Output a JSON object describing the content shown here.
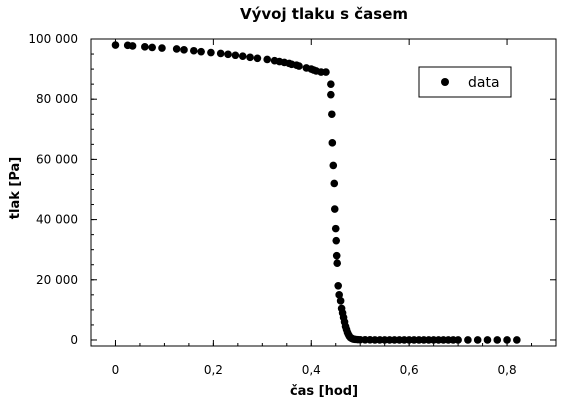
{
  "chart_data": {
    "type": "scatter",
    "title": "Vývoj tlaku s časem",
    "xlabel": "čas [hod]",
    "ylabel": "tlak [Pa]",
    "xlim": [
      -0.05,
      0.9
    ],
    "ylim": [
      -2000,
      100000
    ],
    "xticks": [
      0,
      0.2,
      0.4,
      0.6,
      0.8
    ],
    "xtick_labels": [
      "0",
      "0,2",
      "0,4",
      "0,6",
      "0,8"
    ],
    "yticks": [
      0,
      20000,
      40000,
      60000,
      80000,
      100000
    ],
    "ytick_labels": [
      "0",
      "20 000",
      "40 000",
      "60 000",
      "80 000",
      "100 000"
    ],
    "grid": false,
    "legend_position": "top-right",
    "marker_color": "#000000",
    "series": [
      {
        "name": "data",
        "x": [
          0.0,
          0.025,
          0.035,
          0.06,
          0.075,
          0.095,
          0.125,
          0.14,
          0.16,
          0.175,
          0.195,
          0.215,
          0.23,
          0.245,
          0.26,
          0.275,
          0.29,
          0.31,
          0.325,
          0.335,
          0.345,
          0.355,
          0.36,
          0.37,
          0.375,
          0.39,
          0.4,
          0.405,
          0.41,
          0.42,
          0.43,
          0.44,
          0.44,
          0.442,
          0.443,
          0.445,
          0.447,
          0.448,
          0.45,
          0.451,
          0.452,
          0.453,
          0.455,
          0.457,
          0.46,
          0.462,
          0.464,
          0.466,
          0.468,
          0.47,
          0.472,
          0.474,
          0.476,
          0.478,
          0.48,
          0.483,
          0.486,
          0.49,
          0.495,
          0.5,
          0.51,
          0.52,
          0.53,
          0.54,
          0.55,
          0.56,
          0.57,
          0.58,
          0.59,
          0.6,
          0.61,
          0.62,
          0.63,
          0.64,
          0.65,
          0.66,
          0.67,
          0.68,
          0.69,
          0.7,
          0.72,
          0.74,
          0.76,
          0.78,
          0.8,
          0.82
        ],
        "y": [
          98000,
          97900,
          97700,
          97400,
          97200,
          97000,
          96700,
          96400,
          96100,
          95800,
          95500,
          95200,
          94900,
          94600,
          94300,
          93900,
          93600,
          93200,
          92800,
          92500,
          92200,
          91900,
          91600,
          91300,
          91000,
          90400,
          90000,
          89700,
          89400,
          89000,
          89000,
          85000,
          81500,
          75000,
          65500,
          58000,
          52000,
          43500,
          37000,
          33000,
          28000,
          25500,
          18000,
          15000,
          13000,
          10500,
          9000,
          7500,
          6000,
          4500,
          3500,
          2500,
          1800,
          1200,
          800,
          500,
          300,
          200,
          120,
          80,
          50,
          40,
          30,
          20,
          15,
          10,
          10,
          5,
          5,
          5,
          5,
          0,
          0,
          0,
          0,
          0,
          0,
          0,
          0,
          0,
          0,
          0,
          0,
          0,
          0,
          0
        ]
      }
    ]
  }
}
